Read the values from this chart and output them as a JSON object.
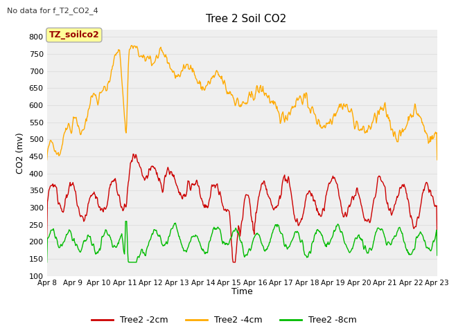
{
  "title": "Tree 2 Soil CO2",
  "subtitle": "No data for f_T2_CO2_4",
  "ylabel": "CO2 (mv)",
  "xlabel": "Time",
  "annotation": "TZ_soilco2",
  "ylim": [
    100,
    820
  ],
  "yticks": [
    100,
    150,
    200,
    250,
    300,
    350,
    400,
    450,
    500,
    550,
    600,
    650,
    700,
    750,
    800
  ],
  "xtick_labels": [
    "Apr 8",
    "Apr 9",
    "Apr 10",
    "Apr 11",
    "Apr 12",
    "Apr 13",
    "Apr 14",
    "Apr 15",
    "Apr 16",
    "Apr 17",
    "Apr 18",
    "Apr 19",
    "Apr 20",
    "Apr 21",
    "Apr 22",
    "Apr 23"
  ],
  "line_colors": {
    "2cm": "#cc0000",
    "4cm": "#ffaa00",
    "8cm": "#00bb00"
  },
  "legend_labels": [
    "Tree2 -2cm",
    "Tree2 -4cm",
    "Tree2 -8cm"
  ],
  "background_color": "#ffffff",
  "grid_color": "#e0e0e0",
  "annotation_bg": "#ffff99",
  "annotation_fg": "#990000",
  "annotation_border": "#aaaaaa"
}
